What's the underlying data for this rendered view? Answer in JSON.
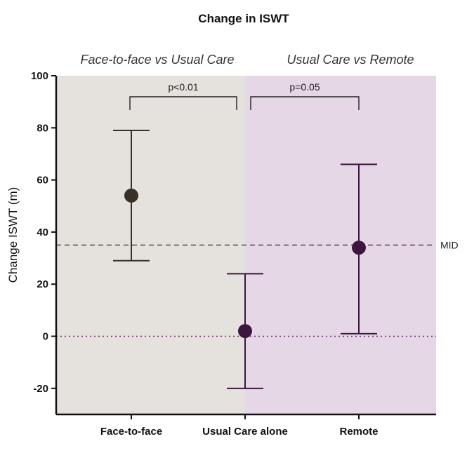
{
  "chart_data": {
    "type": "scatter",
    "title": "Change in ISWT",
    "ylabel": "Change ISWT (m)",
    "xlabel": "",
    "ylim": [
      -30,
      100
    ],
    "yticks": [
      -20,
      0,
      20,
      40,
      60,
      80,
      100
    ],
    "categories": [
      "Face-to-face",
      "Usual Care alone",
      "Remote"
    ],
    "points": [
      {
        "category": "Face-to-face",
        "mean": 54,
        "lower": 29,
        "upper": 79,
        "color": "#3b3028"
      },
      {
        "category": "Usual Care alone",
        "mean": 2,
        "lower": -20,
        "upper": 24,
        "color": "#3d1640"
      },
      {
        "category": "Remote",
        "mean": 34,
        "lower": 1,
        "upper": 66,
        "color": "#3d1640"
      }
    ],
    "panels": [
      {
        "title": "Face-to-face vs Usual Care",
        "color": "#e5e1dd",
        "from": "Face-to-face",
        "to": "Usual Care alone"
      },
      {
        "title": "Usual Care vs Remote",
        "color": "#e6d7e6",
        "from": "Usual Care alone",
        "to": "Remote"
      }
    ],
    "comparisons": [
      {
        "label": "p<0.01",
        "from": "Face-to-face",
        "to": "Usual Care alone"
      },
      {
        "label": "p=0.05",
        "from": "Usual Care alone",
        "to": "Remote"
      }
    ],
    "reference_lines": [
      {
        "value": 35,
        "style": "dashed",
        "label": "MID"
      },
      {
        "value": 0,
        "style": "dotted",
        "label": ""
      }
    ],
    "grid": false,
    "legend": "none"
  }
}
